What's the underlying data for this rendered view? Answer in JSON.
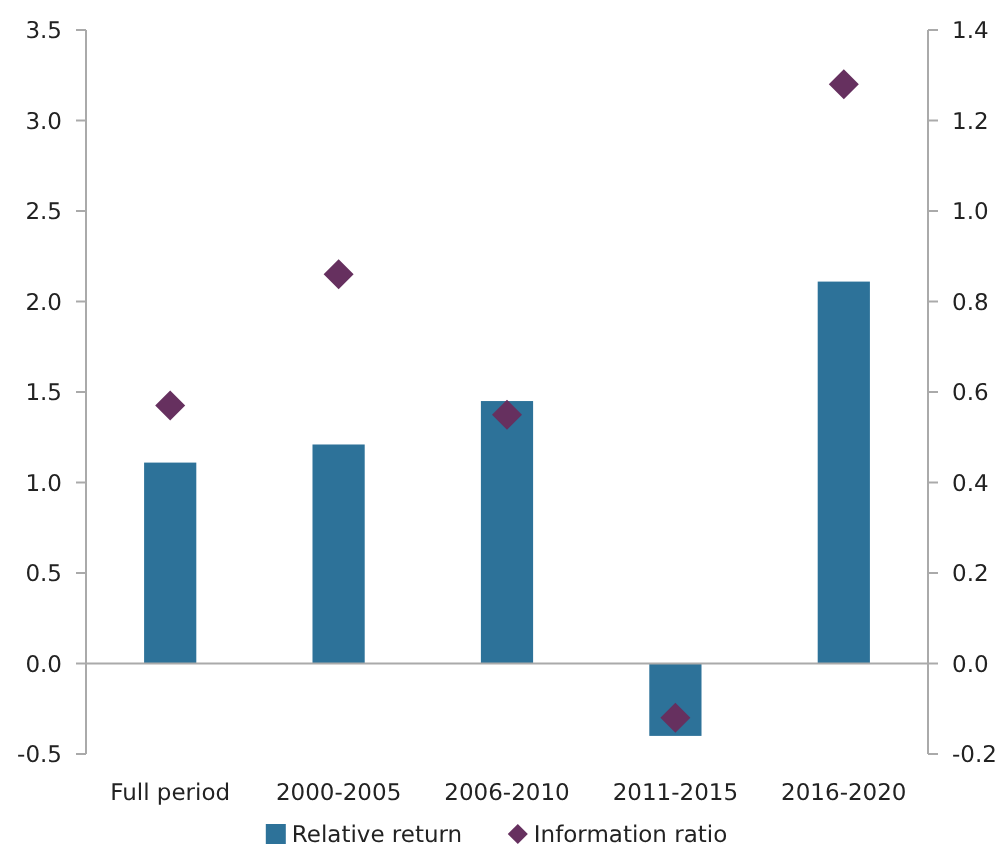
{
  "chart_data": {
    "type": "bar",
    "categories": [
      "Full period",
      "2000-2005",
      "2006-2010",
      "2011-2015",
      "2016-2020"
    ],
    "series": [
      {
        "name": "Relative return",
        "color": "#2d7299",
        "values": [
          1.11,
          1.21,
          1.45,
          -0.4,
          2.11
        ]
      },
      {
        "name": "Information ratio",
        "type": "scatter",
        "axis": "y2",
        "marker": "diamond",
        "color": "#66305f",
        "values": [
          0.57,
          0.86,
          0.55,
          -0.12,
          1.28
        ]
      }
    ],
    "ylim": [
      -0.5,
      3.5
    ],
    "yticks": [
      {
        "value": -0.5,
        "label": "-0.5"
      },
      {
        "value": 0,
        "label": "0.0"
      },
      {
        "value": 0.5,
        "label": "0.5"
      },
      {
        "value": 1,
        "label": "1.0"
      },
      {
        "value": 1.5,
        "label": "1.5"
      },
      {
        "value": 2,
        "label": "2.0"
      },
      {
        "value": 2.5,
        "label": "2.5"
      },
      {
        "value": 3,
        "label": "3.0"
      },
      {
        "value": 3.5,
        "label": "3.5"
      }
    ],
    "y2lim": [
      -0.2,
      1.4
    ],
    "y2ticks": [
      {
        "value": -0.2,
        "label": "-0.2"
      },
      {
        "value": 0,
        "label": "0.0"
      },
      {
        "value": 0.2,
        "label": "0.2"
      },
      {
        "value": 0.4,
        "label": "0.4"
      },
      {
        "value": 0.6,
        "label": "0.6"
      },
      {
        "value": 0.8,
        "label": "0.8"
      },
      {
        "value": 1,
        "label": "1.0"
      },
      {
        "value": 1.2,
        "label": "1.2"
      },
      {
        "value": 1.4,
        "label": "1.4"
      }
    ],
    "legend": "bottom"
  }
}
